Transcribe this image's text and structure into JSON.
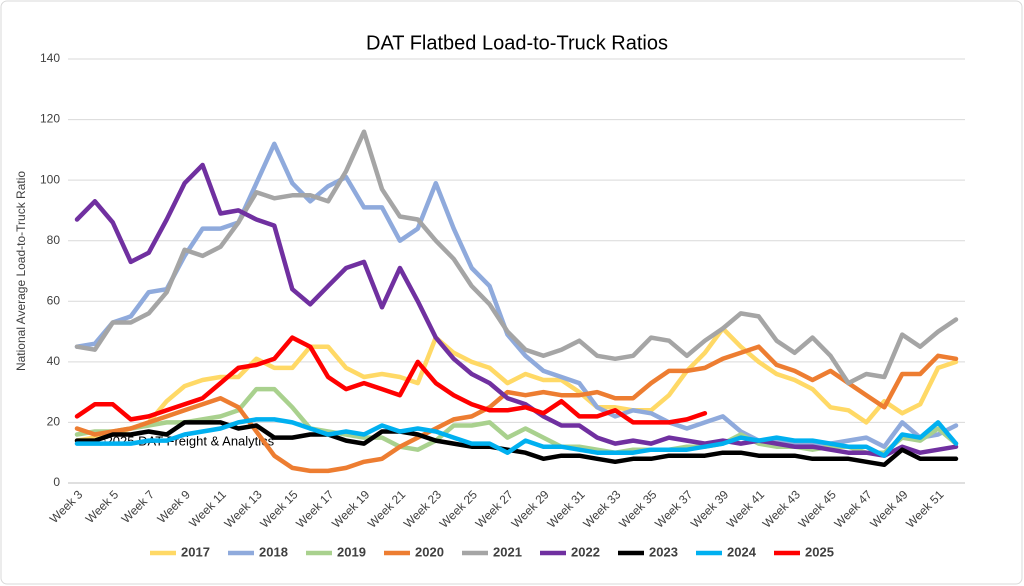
{
  "chart_data": {
    "type": "line",
    "title": "DAT Flatbed Load-to-Truck Ratios",
    "y_label": "National Average Load-to-Truck Ratio",
    "annotation": "©2025 DAT Freight & Analytics",
    "categories": [
      "Week 3",
      null,
      "Week 5",
      null,
      "Week 7",
      null,
      "Week 9",
      null,
      "Week 11",
      null,
      "Week 13",
      null,
      "Week 15",
      null,
      "Week 17",
      null,
      "Week 19",
      null,
      "Week 21",
      null,
      "Week 23",
      null,
      "Week 25",
      null,
      "Week 27",
      null,
      "Week 29",
      null,
      "Week 31",
      null,
      "Week 33",
      null,
      "Week 35",
      null,
      "Week 37",
      null,
      "Week 39",
      null,
      "Week 41",
      null,
      "Week 43",
      null,
      "Week 45",
      null,
      "Week 47",
      null,
      "Week 49",
      null,
      "Week 51",
      null
    ],
    "ylim": [
      0,
      140
    ],
    "yticks": [
      0,
      20,
      40,
      60,
      80,
      100,
      120,
      140
    ],
    "grid": true,
    "legend": "bottom",
    "series": [
      {
        "name": "2017",
        "color": "#ffd966",
        "values": [
          14,
          15,
          16,
          18,
          20,
          27,
          32,
          34,
          35,
          35,
          41,
          38,
          38,
          45,
          45,
          38,
          35,
          36,
          35,
          33,
          48,
          43,
          40,
          38,
          33,
          36,
          34,
          34,
          30,
          25,
          25,
          24,
          24,
          29,
          37,
          43,
          51,
          45,
          40,
          36,
          34,
          31,
          25,
          24,
          20,
          27,
          23,
          26,
          38,
          40
        ]
      },
      {
        "name": "2018",
        "color": "#8faadc",
        "values": [
          45,
          46,
          53,
          55,
          63,
          64,
          75,
          84,
          84,
          86,
          99,
          112,
          99,
          93,
          98,
          101,
          91,
          91,
          80,
          84,
          99,
          84,
          71,
          65,
          49,
          42,
          37,
          35,
          33,
          25,
          22,
          24,
          23,
          20,
          18,
          20,
          22,
          17,
          14,
          14,
          13,
          13,
          13,
          14,
          15,
          12,
          20,
          15,
          16,
          19
        ]
      },
      {
        "name": "2019",
        "color": "#a9d18e",
        "values": [
          16,
          17,
          17,
          18,
          19,
          20,
          20,
          21,
          22,
          24,
          31,
          31,
          25,
          18,
          17,
          16,
          15,
          15,
          12,
          11,
          14,
          19,
          19,
          20,
          15,
          18,
          15,
          12,
          12,
          11,
          10,
          11,
          11,
          11,
          12,
          12,
          13,
          16,
          13,
          12,
          12,
          11,
          12,
          12,
          10,
          10,
          15,
          14,
          18,
          13
        ]
      },
      {
        "name": "2020",
        "color": "#ed7d31",
        "values": [
          18,
          16,
          17,
          18,
          20,
          22,
          24,
          26,
          28,
          25,
          17,
          9,
          5,
          4,
          4,
          5,
          7,
          8,
          12,
          15,
          18,
          21,
          22,
          25,
          30,
          29,
          30,
          29,
          29,
          30,
          28,
          28,
          33,
          37,
          37,
          38,
          41,
          43,
          45,
          39,
          37,
          34,
          37,
          33,
          29,
          25,
          36,
          36,
          42,
          41
        ]
      },
      {
        "name": "2021",
        "color": "#a5a5a5",
        "values": [
          45,
          44,
          53,
          53,
          56,
          63,
          77,
          75,
          78,
          86,
          96,
          94,
          95,
          95,
          93,
          103,
          116,
          97,
          88,
          87,
          80,
          74,
          65,
          59,
          50,
          44,
          42,
          44,
          47,
          42,
          41,
          42,
          48,
          47,
          42,
          47,
          51,
          56,
          55,
          47,
          43,
          48,
          42,
          33,
          36,
          35,
          49,
          45,
          50,
          54
        ]
      },
      {
        "name": "2022",
        "color": "#7030a0",
        "values": [
          87,
          93,
          86,
          73,
          76,
          87,
          99,
          105,
          89,
          90,
          87,
          85,
          64,
          59,
          65,
          71,
          73,
          58,
          71,
          60,
          48,
          41,
          36,
          33,
          28,
          26,
          22,
          19,
          19,
          15,
          13,
          14,
          13,
          15,
          14,
          13,
          14,
          13,
          14,
          13,
          12,
          12,
          11,
          10,
          10,
          9,
          12,
          10,
          11,
          12
        ]
      },
      {
        "name": "2023",
        "color": "#000000",
        "values": [
          14,
          14,
          16,
          16,
          17,
          16,
          20,
          20,
          20,
          18,
          19,
          15,
          15,
          16,
          16,
          14,
          13,
          17,
          17,
          16,
          14,
          13,
          12,
          12,
          11,
          10,
          8,
          9,
          9,
          8,
          7,
          8,
          8,
          9,
          9,
          9,
          10,
          10,
          9,
          9,
          9,
          8,
          8,
          8,
          7,
          6,
          11,
          8,
          8,
          8
        ]
      },
      {
        "name": "2024",
        "color": "#00b0f0",
        "values": [
          13,
          13,
          13,
          13,
          14,
          14,
          16,
          17,
          18,
          20,
          21,
          21,
          20,
          18,
          16,
          17,
          16,
          19,
          17,
          18,
          17,
          15,
          13,
          13,
          10,
          14,
          12,
          12,
          11,
          10,
          10,
          10,
          11,
          11,
          11,
          12,
          13,
          15,
          14,
          15,
          14,
          14,
          13,
          12,
          12,
          9,
          16,
          15,
          20,
          13
        ]
      },
      {
        "name": "2025",
        "color": "#ff0000",
        "values": [
          22,
          26,
          26,
          21,
          22,
          24,
          26,
          28,
          33,
          38,
          39,
          41,
          48,
          45,
          35,
          31,
          33,
          31,
          29,
          40,
          33,
          29,
          26,
          24,
          24,
          25,
          23,
          27,
          22,
          22,
          24,
          20,
          20,
          20,
          21,
          23,
          null,
          null,
          null,
          null,
          null,
          null,
          null,
          null,
          null,
          null,
          null,
          null,
          null,
          null
        ]
      }
    ]
  }
}
